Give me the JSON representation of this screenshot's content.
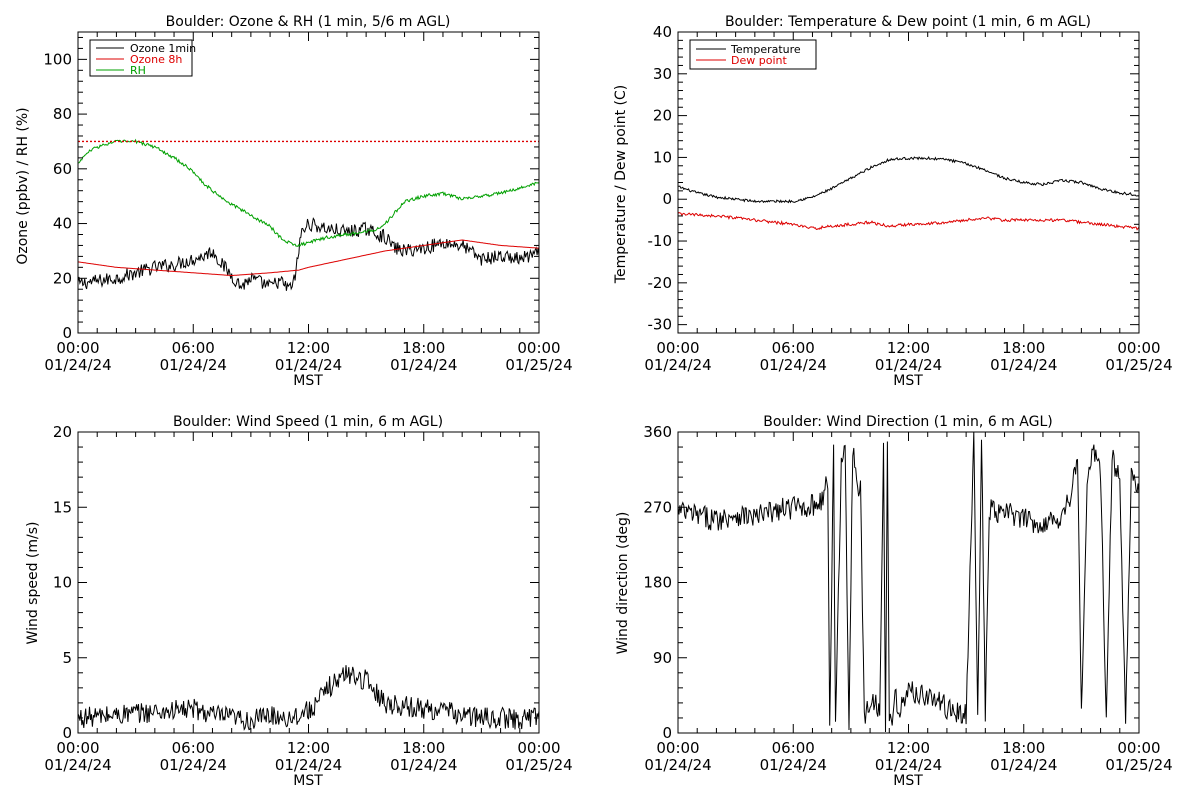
{
  "chart_data": [
    {
      "type": "line",
      "title": "Boulder: Ozone & RH (1 min, 5/6 m AGL)",
      "xlabel": "MST",
      "ylabel": "Ozone (ppbv) / RH (%)",
      "x_ticks": [
        {
          "time": "00:00",
          "date": "01/24/24"
        },
        {
          "time": "06:00",
          "date": "01/24/24"
        },
        {
          "time": "12:00",
          "date": "01/24/24"
        },
        {
          "time": "18:00",
          "date": "01/24/24"
        },
        {
          "time": "00:00",
          "date": "01/25/24"
        }
      ],
      "xlim_hours": [
        0,
        24
      ],
      "ylim": [
        0,
        110
      ],
      "y_ticks": [
        0,
        20,
        40,
        60,
        80,
        100
      ],
      "legend_position": "top-left",
      "reference_line": {
        "y": 70,
        "color": "#dd0000",
        "style": "dotted"
      },
      "series": [
        {
          "name": "Ozone 1min",
          "color": "#000000",
          "noise": 2.5,
          "x": [
            0,
            1,
            2,
            3,
            4,
            5,
            5.5,
            6,
            6.5,
            7,
            7.5,
            8,
            8.5,
            9,
            10,
            10.5,
            11,
            11.3,
            11.6,
            12,
            13,
            14,
            15,
            16,
            16.5,
            17,
            18,
            19,
            20,
            21,
            22,
            23,
            24
          ],
          "values": [
            18,
            19,
            20,
            22,
            24,
            25,
            26,
            27,
            28,
            30,
            25,
            21,
            17,
            20,
            17,
            19,
            16,
            20,
            36,
            40,
            38,
            37,
            38,
            35,
            31,
            30,
            31,
            33,
            32,
            27,
            28,
            27,
            29
          ]
        },
        {
          "name": "Ozone 8h",
          "color": "#dd0000",
          "noise": 0,
          "x": [
            0,
            2,
            4,
            6,
            8,
            10,
            11.5,
            12,
            14,
            16,
            18,
            19,
            20,
            22,
            24
          ],
          "values": [
            26,
            24,
            23,
            22,
            21,
            22,
            23,
            24,
            27,
            30,
            32,
            33,
            34,
            32,
            31
          ]
        },
        {
          "name": "RH",
          "color": "#00a000",
          "noise": 0.6,
          "x": [
            0,
            0.5,
            1,
            2,
            3,
            4,
            5,
            6,
            6.5,
            7,
            8,
            9,
            10,
            10.5,
            11,
            11.5,
            12,
            13,
            14,
            15,
            15.5,
            16,
            16.5,
            17,
            18,
            19,
            20,
            21,
            22,
            23,
            24
          ],
          "values": [
            62,
            66,
            68,
            70,
            70,
            68,
            64,
            59,
            55,
            52,
            47,
            43,
            39,
            35,
            33,
            32,
            33,
            35,
            36,
            37,
            38,
            40,
            44,
            48,
            50,
            51,
            49,
            50,
            51,
            53,
            55
          ]
        }
      ]
    },
    {
      "type": "line",
      "title": "Boulder: Temperature & Dew point (1 min, 6 m AGL)",
      "xlabel": "MST",
      "ylabel": "Temperature / Dew point (C)",
      "x_ticks": [
        {
          "time": "00:00",
          "date": "01/24/24"
        },
        {
          "time": "06:00",
          "date": "01/24/24"
        },
        {
          "time": "12:00",
          "date": "01/24/24"
        },
        {
          "time": "18:00",
          "date": "01/24/24"
        },
        {
          "time": "00:00",
          "date": "01/25/24"
        }
      ],
      "xlim_hours": [
        0,
        24
      ],
      "ylim": [
        -32,
        40
      ],
      "y_ticks": [
        -30,
        -20,
        -10,
        0,
        10,
        20,
        30,
        40
      ],
      "legend_position": "top-left",
      "series": [
        {
          "name": "Temperature",
          "color": "#000000",
          "noise": 0.3,
          "x": [
            0,
            1,
            2,
            3,
            4,
            5,
            6,
            7,
            8,
            9,
            10,
            11,
            12,
            13,
            14,
            15,
            16,
            17,
            18,
            19,
            20,
            21,
            22,
            23,
            24
          ],
          "values": [
            3,
            1.5,
            0.5,
            0,
            -0.5,
            -0.5,
            -0.5,
            0.5,
            2.5,
            5,
            7.5,
            9.5,
            9.8,
            9.8,
            9.5,
            8.5,
            7,
            5,
            4,
            3.5,
            4.5,
            4,
            2.5,
            1.5,
            1
          ]
        },
        {
          "name": "Dew point",
          "color": "#dd0000",
          "noise": 0.35,
          "x": [
            0,
            2,
            4,
            6,
            7,
            8,
            9,
            10,
            11,
            12,
            14,
            16,
            17,
            18,
            20,
            22,
            24
          ],
          "values": [
            -3.5,
            -4,
            -5,
            -6,
            -7,
            -6.5,
            -6,
            -5.5,
            -6.5,
            -6,
            -5.5,
            -4.5,
            -5,
            -5,
            -5,
            -6,
            -7
          ]
        }
      ]
    },
    {
      "type": "line",
      "title": "Boulder: Wind Speed (1 min, 6 m AGL)",
      "xlabel": "MST",
      "ylabel": "Wind speed (m/s)",
      "x_ticks": [
        {
          "time": "00:00",
          "date": "01/24/24"
        },
        {
          "time": "06:00",
          "date": "01/24/24"
        },
        {
          "time": "12:00",
          "date": "01/24/24"
        },
        {
          "time": "18:00",
          "date": "01/24/24"
        },
        {
          "time": "00:00",
          "date": "01/25/24"
        }
      ],
      "xlim_hours": [
        0,
        24
      ],
      "ylim": [
        0,
        20
      ],
      "y_ticks": [
        0,
        5,
        10,
        15,
        20
      ],
      "series": [
        {
          "name": "",
          "color": "#000000",
          "noise": 0.7,
          "x": [
            0,
            2,
            4,
            6,
            7,
            8,
            9,
            10,
            11,
            12,
            12.5,
            13,
            14,
            15,
            16,
            17,
            18,
            19,
            20,
            21,
            22,
            23,
            24
          ],
          "values": [
            1,
            1.2,
            1.4,
            1.6,
            1.2,
            1.0,
            0.8,
            1.2,
            1.0,
            1.5,
            2,
            3,
            4,
            3.5,
            2.0,
            1.8,
            1.6,
            1.5,
            1.2,
            1.0,
            1.0,
            0.9,
            1.2
          ]
        }
      ]
    },
    {
      "type": "line",
      "title": "Boulder: Wind Direction (1 min, 6 m AGL)",
      "xlabel": "MST",
      "ylabel": "Wind direction (deg)",
      "x_ticks": [
        {
          "time": "00:00",
          "date": "01/24/24"
        },
        {
          "time": "06:00",
          "date": "01/24/24"
        },
        {
          "time": "12:00",
          "date": "01/24/24"
        },
        {
          "time": "18:00",
          "date": "01/24/24"
        },
        {
          "time": "00:00",
          "date": "01/25/24"
        }
      ],
      "xlim_hours": [
        0,
        24
      ],
      "ylim": [
        0,
        360
      ],
      "y_ticks": [
        0,
        90,
        180,
        270,
        360
      ],
      "series": [
        {
          "name": "",
          "color": "#000000",
          "noise": 14,
          "x": [
            0,
            1,
            2,
            3,
            4,
            5,
            6,
            7,
            7.5,
            7.8,
            7.9,
            8.1,
            8.2,
            8.5,
            8.7,
            8.9,
            9.1,
            9.3,
            9.5,
            9.7,
            9.9,
            10.2,
            10.5,
            10.7,
            10.8,
            10.9,
            11.0,
            11.1,
            11.3,
            11.6,
            12,
            13,
            14,
            15,
            15.4,
            15.6,
            15.8,
            16,
            16.2,
            16.4,
            16.6,
            17,
            18,
            19,
            20,
            20.5,
            20.8,
            21,
            21.3,
            21.6,
            22,
            22.3,
            22.6,
            23,
            23.3,
            23.6,
            24
          ],
          "values": [
            265,
            260,
            255,
            262,
            258,
            265,
            270,
            272,
            280,
            300,
            5,
            340,
            5,
            320,
            350,
            10,
            340,
            300,
            290,
            20,
            30,
            40,
            25,
            350,
            5,
            355,
            20,
            10,
            40,
            30,
            50,
            45,
            30,
            20,
            355,
            10,
            355,
            15,
            270,
            265,
            260,
            265,
            255,
            250,
            260,
            290,
            330,
            20,
            300,
            340,
            310,
            15,
            330,
            300,
            10,
            320,
            290
          ]
        }
      ]
    }
  ]
}
